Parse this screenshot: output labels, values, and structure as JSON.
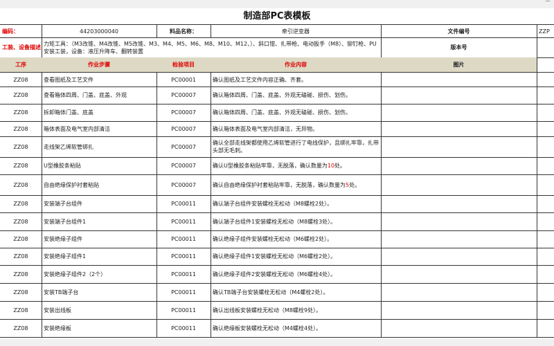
{
  "title": "制造部PC表模板",
  "info": {
    "code_label": "编码：",
    "code_value": "44203000040",
    "name_label": "料品名称：",
    "name_value": "牵引逆变器",
    "file_no_label": "文件编号",
    "file_no_value": "ZZP",
    "tools_label": "工装、设备描述：",
    "tools_value": "力矩工具：（M3改锥、M4改锥、M5改锥、M3、M4、M5、M6、M8、M10、M12、）、斜口钳、扎带枪、电动扳手（M8）、铆钉枪、PU安装工装，设备：液压升降车、翻转装置",
    "version_label": "版本号"
  },
  "headers": [
    "工序",
    "作业步骤",
    "检验项目",
    "作业内容",
    "图片"
  ],
  "accent": "#e00000",
  "rows": [
    {
      "op": "ZZ08",
      "step": "查看图纸及工艺文件",
      "item": "PC00001",
      "content": "确认图纸及工艺文件内容正确、齐套。"
    },
    {
      "op": "ZZ08",
      "step": "查看箱体四周、门盖、底盖、外观",
      "item": "PC00007",
      "content": "确认箱体四周、门盖、底盖、外观无磕碰、损伤、划伤。"
    },
    {
      "op": "ZZ08",
      "step": "拆卸箱体门盖、底盖",
      "item": "PC00007",
      "content": "确认箱体四周、门盖、底盖、外观无磕碰、损伤、划伤。"
    },
    {
      "op": "ZZ08",
      "step": "箱体表面及电气室内部清洁",
      "item": "PC00007",
      "content": "确认箱体表面及电气室内部清洁，无异物。"
    },
    {
      "op": "ZZ08",
      "step": "走线架乙烯软管绑扎",
      "item": "PC00007",
      "content": "确认全部走线架都使用乙烯软管进行了电线保护，且绑扎牢靠，扎带头部无毛刺。"
    },
    {
      "op": "ZZ08",
      "step": "U型橡胶条粘贴",
      "item": "PC00007",
      "content_pre": "确认U型橡胶条粘贴牢靠，无脱落，确认数量为",
      "content_num": "10",
      "content_post": "处。"
    },
    {
      "op": "ZZ08",
      "step": "自由绝缘保护衬套粘贴",
      "item": "PC00007",
      "content_pre": "确认自由绝缘保护衬套粘贴牢靠，无脱落，确认数量为",
      "content_num": "5",
      "content_post": "处。"
    },
    {
      "op": "ZZ08",
      "step": "安装端子台组件",
      "item": "PC00011",
      "content": "确认端子台组件安装螺栓无松动（M8螺栓2处）。"
    },
    {
      "op": "ZZ08",
      "step": "安装端子台组件1",
      "item": "PC00011",
      "content": "确认端子台组件1安装螺栓无松动（M8螺栓3处）。"
    },
    {
      "op": "ZZ08",
      "step": "安装绝缘子组件",
      "item": "PC00011",
      "content": "确认绝缘子组件安装螺栓无松动（M6螺栓2处）。"
    },
    {
      "op": "ZZ08",
      "step": "安装绝缘子组件1",
      "item": "PC00011",
      "content": "确认绝缘子组件1安装螺栓无松动（M6螺栓2处）。"
    },
    {
      "op": "ZZ08",
      "step": "安装绝缘子组件2（2个）",
      "item": "PC00011",
      "content": "确认绝缘子组件2安装螺栓无松动（M6螺栓4处）。"
    },
    {
      "op": "ZZ08",
      "step": "安装TB端子台",
      "item": "PC00011",
      "content": "确认TB端子台安装螺栓无松动（M4螺栓2处）。"
    },
    {
      "op": "ZZ08",
      "step": "安装出线板",
      "item": "PC00011",
      "content": "确认出线板安装螺栓无松动（M8螺栓9处）。"
    },
    {
      "op": "ZZ08",
      "step": "安装绝缘板",
      "item": "PC00011",
      "content": "确认绝缘板安装螺栓无松动（M4螺栓4处）。"
    }
  ]
}
